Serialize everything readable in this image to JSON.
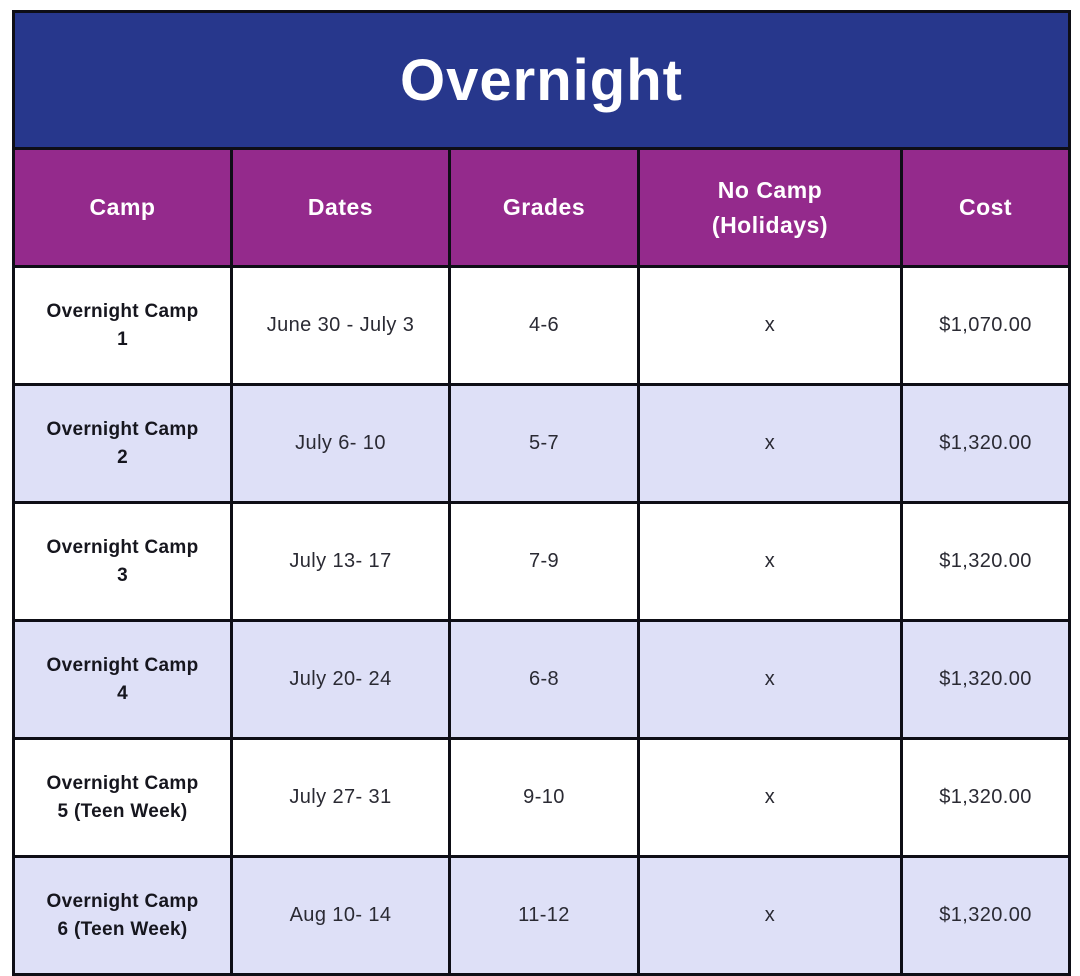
{
  "table": {
    "title": "Overnight",
    "colors": {
      "title_bg": "#27378c",
      "header_bg": "#942a8c",
      "row_alt_bg": "#dee0f7",
      "border": "#0e0e16",
      "header_text": "#ffffff",
      "body_text": "#2a2a33"
    },
    "columns": {
      "camp": "Camp",
      "dates": "Dates",
      "grades": "Grades",
      "no_camp": "No Camp\n(Holidays)",
      "cost": "Cost"
    },
    "rows": [
      {
        "camp": "Overnight Camp\n1",
        "dates": "June 30 - July 3",
        "grades": "4-6",
        "no_camp": "x",
        "cost": "$1,070.00"
      },
      {
        "camp": "Overnight Camp\n2",
        "dates": "July 6- 10",
        "grades": "5-7",
        "no_camp": "x",
        "cost": "$1,320.00"
      },
      {
        "camp": "Overnight Camp\n3",
        "dates": "July 13- 17",
        "grades": "7-9",
        "no_camp": "x",
        "cost": "$1,320.00"
      },
      {
        "camp": "Overnight Camp\n4",
        "dates": "July 20- 24",
        "grades": "6-8",
        "no_camp": "x",
        "cost": "$1,320.00"
      },
      {
        "camp": "Overnight Camp\n5 (Teen Week)",
        "dates": "July 27- 31",
        "grades": "9-10",
        "no_camp": "x",
        "cost": "$1,320.00"
      },
      {
        "camp": "Overnight Camp\n6 (Teen Week)",
        "dates": "Aug 10- 14",
        "grades": "11-12",
        "no_camp": "x",
        "cost": "$1,320.00"
      }
    ]
  }
}
